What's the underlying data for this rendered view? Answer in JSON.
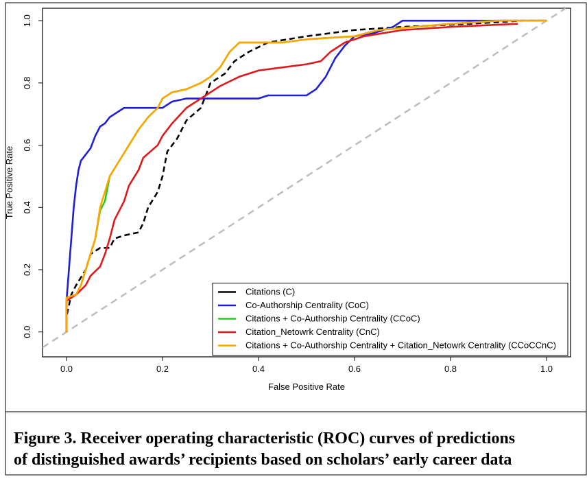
{
  "chart_data": {
    "type": "line",
    "xlabel": "False Positive Rate",
    "ylabel": "True Positive Rate",
    "xlim": [
      -0.05,
      1.05
    ],
    "ylim": [
      -0.08,
      1.04
    ],
    "xticks": [
      {
        "value": 0,
        "label": "0.0"
      },
      0.2,
      0.4,
      0.6,
      0.8,
      {
        "value": 1,
        "label": "1.0"
      }
    ],
    "yticks": [
      {
        "value": 0,
        "label": "0.0"
      },
      0.2,
      0.4,
      0.6,
      0.8,
      {
        "value": 1,
        "label": "1.0"
      }
    ],
    "legend": "bottomright",
    "series": [
      {
        "name": "Citations (C)",
        "color": "#000000",
        "dash": true,
        "x": [
          0,
          0,
          0.01,
          0.02,
          0.04,
          0.05,
          0.07,
          0.09,
          0.1,
          0.12,
          0.15,
          0.16,
          0.17,
          0.19,
          0.2,
          0.21,
          0.23,
          0.25,
          0.28,
          0.3,
          0.33,
          0.35,
          0.38,
          0.42,
          0.5,
          0.55,
          0.6,
          0.7,
          0.84,
          0.95,
          1
        ],
        "values": [
          0,
          0.05,
          0.12,
          0.15,
          0.2,
          0.25,
          0.27,
          0.27,
          0.3,
          0.31,
          0.32,
          0.35,
          0.4,
          0.45,
          0.5,
          0.58,
          0.62,
          0.68,
          0.72,
          0.8,
          0.83,
          0.87,
          0.9,
          0.93,
          0.95,
          0.96,
          0.97,
          0.98,
          0.99,
          1,
          1
        ]
      },
      {
        "name": "Co-Authorship Centrality (CoC)",
        "color": "#1f1fd6",
        "dash": false,
        "x": [
          0,
          0,
          0.005,
          0.01,
          0.015,
          0.02,
          0.025,
          0.03,
          0.04,
          0.05,
          0.06,
          0.07,
          0.08,
          0.09,
          0.1,
          0.12,
          0.2,
          0.22,
          0.25,
          0.4,
          0.42,
          0.5,
          0.52,
          0.54,
          0.56,
          0.58,
          0.6,
          0.64,
          0.68,
          0.7,
          1
        ],
        "values": [
          0,
          0.1,
          0.2,
          0.3,
          0.4,
          0.47,
          0.52,
          0.55,
          0.57,
          0.59,
          0.63,
          0.66,
          0.67,
          0.69,
          0.7,
          0.72,
          0.72,
          0.74,
          0.75,
          0.75,
          0.76,
          0.76,
          0.78,
          0.82,
          0.88,
          0.92,
          0.95,
          0.96,
          0.98,
          1,
          1
        ]
      },
      {
        "name": "Citations + Co-Authorship Centrality (CCoC)",
        "color": "#22cc22",
        "dash": false,
        "x": [
          0,
          0,
          0.02,
          0.03,
          0.05,
          0.06,
          0.07,
          0.08,
          0.09,
          0.11,
          0.13,
          0.15,
          0.17,
          0.19,
          0.2,
          0.22,
          0.25,
          0.28,
          0.3,
          0.32,
          0.34,
          0.36,
          0.45,
          0.5,
          0.6,
          0.65,
          0.8,
          0.9,
          1
        ],
        "values": [
          0,
          0.11,
          0.12,
          0.15,
          0.25,
          0.3,
          0.39,
          0.42,
          0.5,
          0.55,
          0.6,
          0.65,
          0.69,
          0.72,
          0.75,
          0.77,
          0.78,
          0.8,
          0.82,
          0.85,
          0.9,
          0.93,
          0.93,
          0.94,
          0.95,
          0.97,
          0.99,
          1,
          1
        ]
      },
      {
        "name": "Citation_Netowrk Centrality (CnC)",
        "color": "#e0191c",
        "dash": false,
        "x": [
          0,
          0,
          0.02,
          0.04,
          0.05,
          0.07,
          0.08,
          0.09,
          0.1,
          0.12,
          0.13,
          0.15,
          0.16,
          0.19,
          0.2,
          0.22,
          0.25,
          0.28,
          0.32,
          0.36,
          0.4,
          0.45,
          0.5,
          0.53,
          0.55,
          0.58,
          0.62,
          0.7,
          0.8,
          0.94
        ],
        "values": [
          0,
          0.1,
          0.12,
          0.15,
          0.18,
          0.21,
          0.25,
          0.3,
          0.36,
          0.42,
          0.47,
          0.52,
          0.56,
          0.6,
          0.63,
          0.67,
          0.72,
          0.75,
          0.79,
          0.82,
          0.84,
          0.85,
          0.86,
          0.87,
          0.9,
          0.93,
          0.95,
          0.97,
          0.98,
          0.99
        ]
      },
      {
        "name": "Citations + Co-Authorship Centrality + Citation_Netowrk Centrality (CCoCCnC)",
        "color": "#ffa500",
        "dash": false,
        "x": [
          0,
          0,
          0.02,
          0.03,
          0.05,
          0.06,
          0.07,
          0.08,
          0.09,
          0.11,
          0.13,
          0.15,
          0.17,
          0.19,
          0.2,
          0.22,
          0.25,
          0.28,
          0.3,
          0.32,
          0.34,
          0.36,
          0.45,
          0.5,
          0.6,
          0.65,
          0.8,
          0.9,
          1
        ],
        "values": [
          0,
          0.11,
          0.12,
          0.15,
          0.25,
          0.3,
          0.4,
          0.45,
          0.5,
          0.55,
          0.6,
          0.65,
          0.69,
          0.72,
          0.75,
          0.77,
          0.78,
          0.8,
          0.82,
          0.85,
          0.9,
          0.93,
          0.93,
          0.94,
          0.95,
          0.97,
          0.99,
          1,
          1
        ]
      }
    ],
    "caption": [
      "Figure 3. Receiver operating characteristic (ROC) curves of predictions",
      "of distinguished awards’ recipients based on scholars’ early career data"
    ]
  }
}
